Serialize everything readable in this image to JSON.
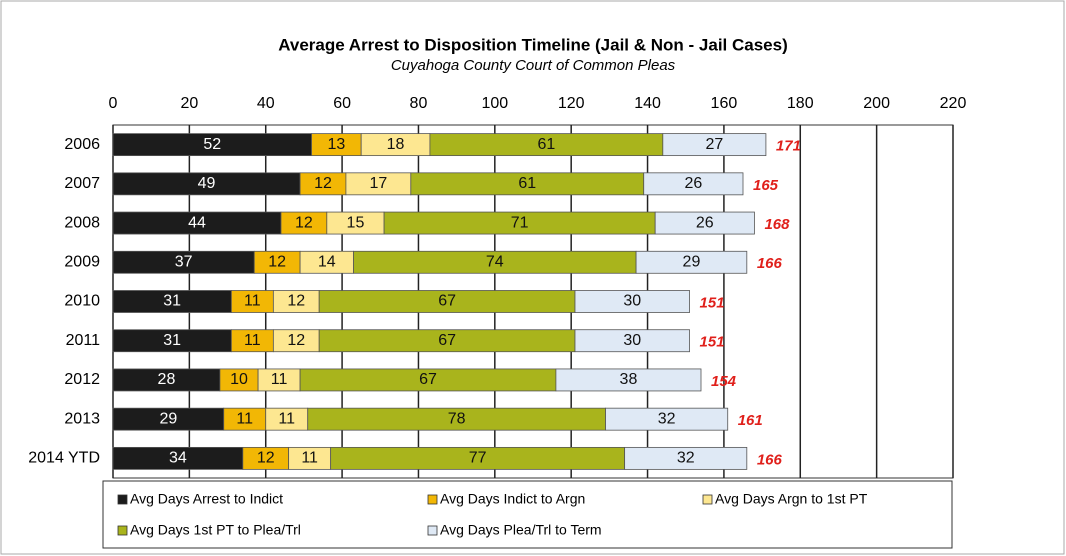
{
  "chart_data": {
    "type": "bar",
    "orientation": "horizontal",
    "title": "Average Arrest to Disposition Timeline (Jail & Non - Jail Cases)",
    "subtitle": "Cuyahoga County Court of Common Pleas",
    "categories": [
      "2006",
      "2007",
      "2008",
      "2009",
      "2010",
      "2011",
      "2012",
      "2013",
      "2014 YTD"
    ],
    "series": [
      {
        "name": "Avg Days Arrest to Indict",
        "color": "#1c1c1c",
        "values": [
          52,
          49,
          44,
          37,
          31,
          31,
          28,
          29,
          34
        ]
      },
      {
        "name": "Avg Days Indict to Argn",
        "color": "#f2b705",
        "values": [
          13,
          12,
          12,
          12,
          11,
          11,
          10,
          11,
          12
        ]
      },
      {
        "name": "Avg Days Argn to 1st PT",
        "color": "#fde791",
        "values": [
          18,
          17,
          15,
          14,
          12,
          12,
          11,
          11,
          11
        ]
      },
      {
        "name": "Avg Days 1st PT to Plea/Trl",
        "color": "#a9b41c",
        "values": [
          61,
          61,
          71,
          74,
          67,
          67,
          67,
          78,
          77
        ]
      },
      {
        "name": "Avg Days Plea/Trl to Term",
        "color": "#dfe9f5",
        "values": [
          27,
          26,
          26,
          29,
          30,
          30,
          38,
          32,
          32
        ]
      }
    ],
    "totals": [
      171,
      165,
      168,
      166,
      151,
      151,
      154,
      161,
      166
    ],
    "xlim": [
      0,
      220
    ],
    "xticks": [
      0,
      20,
      40,
      60,
      80,
      100,
      120,
      140,
      160,
      180,
      200,
      220
    ],
    "grid": true,
    "legend": "bottom"
  }
}
